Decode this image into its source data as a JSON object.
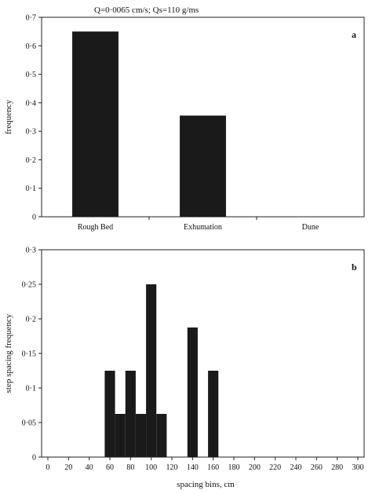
{
  "figure_title": "Q=0·0065 cm/s; Qs=110 g/ms",
  "chart_data": [
    {
      "type": "bar",
      "panel_label": "a",
      "title": "",
      "xlabel": "",
      "ylabel": "frequency",
      "categories": [
        "Rough Bed",
        "Exhumation",
        "Dune"
      ],
      "values": [
        0.65,
        0.355,
        0
      ],
      "ylim": [
        0,
        0.7
      ],
      "yticks": [
        0,
        0.1,
        0.2,
        0.3,
        0.4,
        0.5,
        0.6,
        0.7
      ],
      "ytick_labels": [
        "0",
        "0·1",
        "0·2",
        "0·3",
        "0·4",
        "0·5",
        "0·6",
        "0·7"
      ],
      "bar_color": "#1a1a1a",
      "grid": false
    },
    {
      "type": "bar",
      "panel_label": "b",
      "title": "",
      "xlabel": "spacing bins, cm",
      "ylabel": "step spacing frequency",
      "bin_width": 10,
      "x": [
        60,
        70,
        80,
        90,
        100,
        110,
        140,
        160
      ],
      "values": [
        0.125,
        0.0625,
        0.125,
        0.0625,
        0.25,
        0.0625,
        0.1875,
        0.125
      ],
      "xlim": [
        0,
        300
      ],
      "xticks": [
        0,
        20,
        40,
        60,
        80,
        100,
        120,
        140,
        160,
        180,
        200,
        220,
        240,
        260,
        280,
        300
      ],
      "xtick_labels": [
        "0",
        "20",
        "40",
        "60",
        "80",
        "100",
        "120",
        "140",
        "160",
        "180",
        "200",
        "220",
        "240",
        "260",
        "280",
        "300"
      ],
      "ylim": [
        0,
        0.3
      ],
      "yticks": [
        0,
        0.05,
        0.1,
        0.15,
        0.2,
        0.25,
        0.3
      ],
      "ytick_labels": [
        "0",
        "0·05",
        "0·1",
        "0·15",
        "0·2",
        "0·25",
        "0·3"
      ],
      "bar_color": "#1a1a1a",
      "grid": false
    }
  ]
}
